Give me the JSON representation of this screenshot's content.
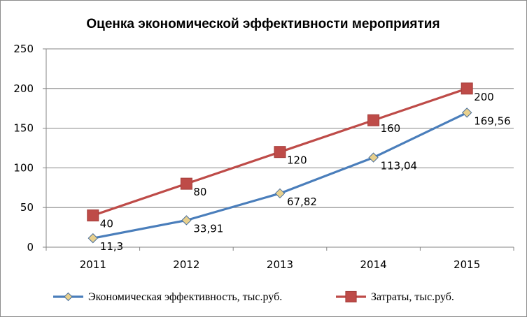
{
  "chart_data": {
    "type": "line",
    "title": "Оценка экономической эффективности мероприятия",
    "categories": [
      "2011",
      "2012",
      "2013",
      "2014",
      "2015"
    ],
    "ylim": [
      0,
      250
    ],
    "yticks": [
      "0",
      "50",
      "100",
      "150",
      "200",
      "250"
    ],
    "grid": true,
    "legend_position": "bottom",
    "series": [
      {
        "name": "Экономическая эффективность, тыс.руб.",
        "values": [
          11.3,
          33.91,
          67.82,
          113.04,
          169.56
        ],
        "labels": [
          "11,3",
          "33,91",
          "67,82",
          "113,04",
          "169,56"
        ],
        "color": "#4a7ebb",
        "marker": "diamond",
        "marker_fill": "#e8d08d"
      },
      {
        "name": "Затраты, тыс.руб.",
        "values": [
          40,
          80,
          120,
          160,
          200
        ],
        "labels": [
          "40",
          "80",
          "120",
          "160",
          "200"
        ],
        "color": "#be4b48",
        "marker": "square",
        "marker_fill": "#be4b48"
      }
    ]
  }
}
